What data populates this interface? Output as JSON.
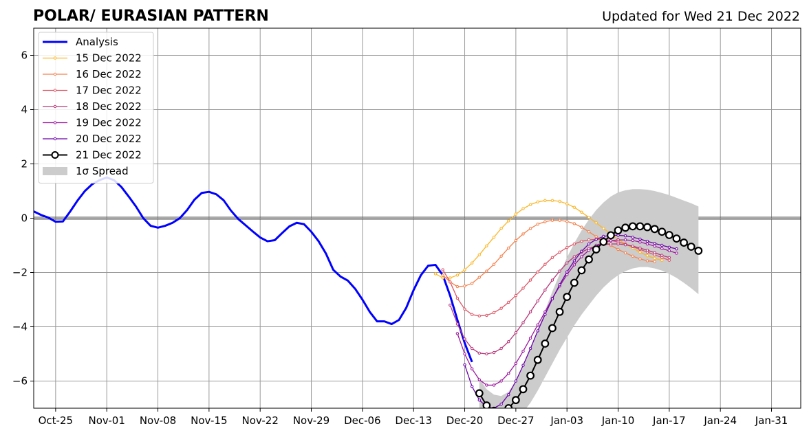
{
  "chart_data": {
    "type": "line",
    "title": "POLAR/ EURASIAN  PATTERN",
    "subtitle": "Updated for Wed 21 Dec 2022",
    "xlabel": "",
    "ylabel": "",
    "xlim": [
      "2022-10-22",
      "2023-02-04"
    ],
    "ylim": [
      -7,
      7
    ],
    "grid": true,
    "legend_position": "top-left",
    "x_ticks": [
      "2022-10-25",
      "2022-11-01",
      "2022-11-08",
      "2022-11-15",
      "2022-11-22",
      "2022-11-29",
      "2022-12-06",
      "2022-12-13",
      "2022-12-20",
      "2022-12-27",
      "2023-01-03",
      "2023-01-10",
      "2023-01-17",
      "2023-01-24",
      "2023-01-31"
    ],
    "x_tick_labels": [
      "Oct-25",
      "Nov-01",
      "Nov-08",
      "Nov-15",
      "Nov-22",
      "Nov-29",
      "Dec-06",
      "Dec-13",
      "Dec-20",
      "Dec-27",
      "Jan-03",
      "Jan-10",
      "Jan-17",
      "Jan-24",
      "Jan-31"
    ],
    "y_ticks": [
      6,
      4,
      2,
      0,
      -2,
      -4,
      -6
    ],
    "y_tick_labels": [
      "6",
      "4",
      "2",
      "0",
      "−2",
      "−4",
      "−6"
    ],
    "analysis": {
      "name": "Analysis",
      "color": "#0000ff",
      "start": "2022-10-22",
      "values": [
        0.25,
        0.12,
        0.02,
        -0.13,
        -0.12,
        0.25,
        0.65,
        1.0,
        1.25,
        1.4,
        1.5,
        1.4,
        1.15,
        0.8,
        0.43,
        0.0,
        -0.28,
        -0.35,
        -0.28,
        -0.17,
        0.0,
        0.3,
        0.68,
        0.93,
        0.97,
        0.88,
        0.66,
        0.28,
        -0.03,
        -0.26,
        -0.49,
        -0.71,
        -0.85,
        -0.81,
        -0.55,
        -0.3,
        -0.17,
        -0.22,
        -0.5,
        -0.85,
        -1.3,
        -1.9,
        -2.15,
        -2.3,
        -2.6,
        -3.0,
        -3.45,
        -3.8,
        -3.8,
        -3.9,
        -3.75,
        -3.3,
        -2.65,
        -2.1,
        -1.75,
        -1.72,
        -2.1,
        -2.85,
        -3.75,
        -4.6,
        -5.3
      ]
    },
    "forecasts": [
      {
        "name": "15 Dec 2022",
        "color": "#fcb625",
        "start": "2022-12-16",
        "values": [
          -2.05,
          -2.2,
          -2.2,
          -2.1,
          -1.9,
          -1.65,
          -1.35,
          -1.02,
          -0.7,
          -0.38,
          -0.1,
          0.15,
          0.35,
          0.5,
          0.6,
          0.65,
          0.65,
          0.62,
          0.53,
          0.4,
          0.22,
          0.03,
          -0.17,
          -0.38,
          -0.58,
          -0.78,
          -0.95,
          -1.1,
          -1.25,
          -1.38,
          -1.48,
          -1.55
        ]
      },
      {
        "name": "16 Dec 2022",
        "color": "#f3814d",
        "start": "2022-12-17",
        "values": [
          -2.1,
          -2.35,
          -2.52,
          -2.5,
          -2.4,
          -2.18,
          -1.95,
          -1.7,
          -1.4,
          -1.1,
          -0.82,
          -0.58,
          -0.38,
          -0.22,
          -0.13,
          -0.08,
          -0.08,
          -0.12,
          -0.2,
          -0.33,
          -0.5,
          -0.68,
          -0.85,
          -1.0,
          -1.15,
          -1.28,
          -1.4,
          -1.5,
          -1.57,
          -1.6
        ]
      },
      {
        "name": "17 Dec 2022",
        "color": "#dd5566",
        "start": "2022-12-17",
        "values": [
          -1.9,
          -2.35,
          -2.95,
          -3.35,
          -3.55,
          -3.6,
          -3.58,
          -3.48,
          -3.32,
          -3.1,
          -2.85,
          -2.58,
          -2.28,
          -1.98,
          -1.7,
          -1.45,
          -1.25,
          -1.08,
          -0.95,
          -0.85,
          -0.8,
          -0.78,
          -0.78,
          -0.82,
          -0.88,
          -0.95,
          -1.05,
          -1.15,
          -1.25,
          -1.35,
          -1.45,
          -1.55
        ]
      },
      {
        "name": "18 Dec 2022",
        "color": "#b63679",
        "start": "2022-12-18",
        "values": [
          -3.2,
          -3.9,
          -4.45,
          -4.8,
          -4.97,
          -5.0,
          -4.95,
          -4.8,
          -4.55,
          -4.22,
          -3.85,
          -3.45,
          -3.05,
          -2.65,
          -2.28,
          -1.95,
          -1.65,
          -1.42,
          -1.25,
          -1.12,
          -1.02,
          -0.97,
          -0.95,
          -0.95,
          -0.98,
          -1.03,
          -1.1,
          -1.18,
          -1.27,
          -1.37,
          -1.45
        ]
      },
      {
        "name": "19 Dec 2022",
        "color": "#9c179e",
        "start": "2022-12-19",
        "values": [
          -4.25,
          -5.0,
          -5.55,
          -5.95,
          -6.15,
          -6.15,
          -6.0,
          -5.72,
          -5.35,
          -4.9,
          -4.42,
          -3.93,
          -3.45,
          -2.95,
          -2.5,
          -2.08,
          -1.72,
          -1.42,
          -1.18,
          -1.0,
          -0.9,
          -0.83,
          -0.8,
          -0.8,
          -0.82,
          -0.88,
          -0.95,
          -1.03,
          -1.12,
          -1.2,
          -1.29
        ]
      },
      {
        "name": "20 Dec 2022",
        "color": "#6a00a8",
        "start": "2022-12-20",
        "values": [
          -5.4,
          -6.2,
          -6.7,
          -6.95,
          -7.0,
          -6.85,
          -6.5,
          -6.0,
          -5.42,
          -4.8,
          -4.15,
          -3.55,
          -2.97,
          -2.45,
          -1.98,
          -1.57,
          -1.22,
          -0.95,
          -0.78,
          -0.67,
          -0.63,
          -0.63,
          -0.65,
          -0.7,
          -0.77,
          -0.85,
          -0.93,
          -1.0,
          -1.07,
          -1.13
        ]
      },
      {
        "name": "21 Dec 2022",
        "color": "#000000",
        "start": "2022-12-22",
        "values": [
          -6.45,
          -6.9,
          -7.1,
          -7.15,
          -7.0,
          -6.7,
          -6.3,
          -5.8,
          -5.22,
          -4.62,
          -4.05,
          -3.45,
          -2.9,
          -2.38,
          -1.92,
          -1.52,
          -1.15,
          -0.87,
          -0.63,
          -0.45,
          -0.35,
          -0.3,
          -0.3,
          -0.33,
          -0.4,
          -0.5,
          -0.62,
          -0.75,
          -0.9,
          -1.05,
          -1.2
        ]
      }
    ],
    "spread": {
      "name": "1σ Spread",
      "color": "#cccccc",
      "start": "2022-12-22",
      "upper": [
        -5.9,
        -6.3,
        -6.5,
        -6.55,
        -6.4,
        -6.0,
        -5.45,
        -4.8,
        -4.1,
        -3.4,
        -2.7,
        -2.05,
        -1.45,
        -0.92,
        -0.45,
        -0.05,
        0.3,
        0.58,
        0.8,
        0.95,
        1.03,
        1.07,
        1.07,
        1.05,
        1.0,
        0.93,
        0.85,
        0.75,
        0.65,
        0.55,
        0.43
      ],
      "lower": [
        -7.0,
        -7.5,
        -7.7,
        -7.75,
        -7.6,
        -7.4,
        -7.15,
        -6.8,
        -6.35,
        -5.85,
        -5.35,
        -4.85,
        -4.4,
        -3.95,
        -3.55,
        -3.2,
        -2.85,
        -2.55,
        -2.3,
        -2.1,
        -1.95,
        -1.85,
        -1.8,
        -1.8,
        -1.85,
        -1.93,
        -2.05,
        -2.2,
        -2.38,
        -2.58,
        -2.8
      ]
    }
  }
}
